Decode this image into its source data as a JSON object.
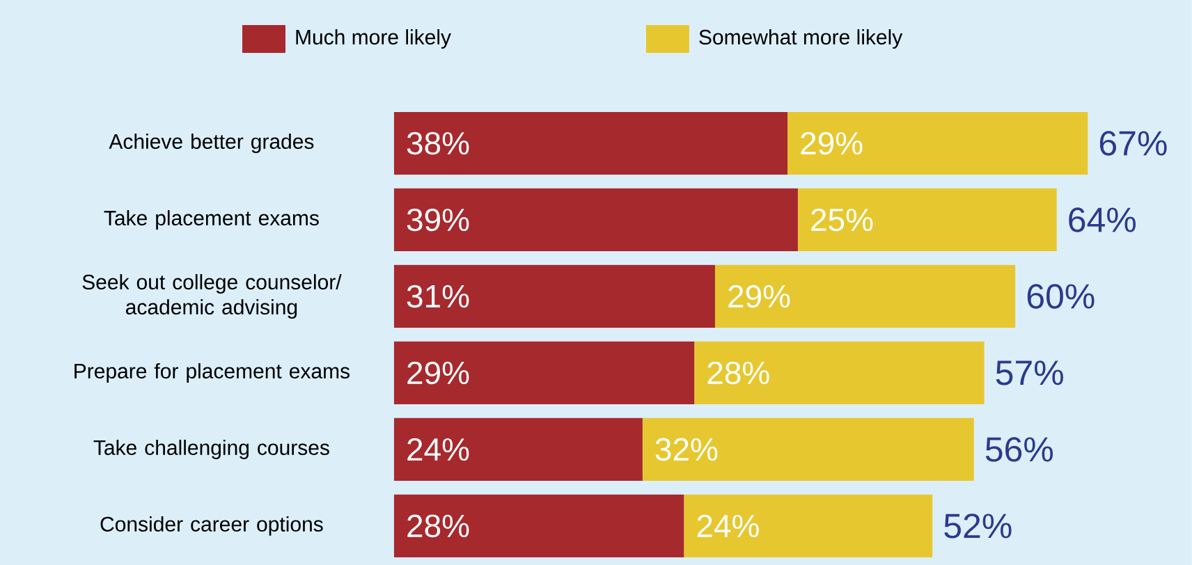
{
  "chart_data": {
    "type": "bar",
    "orientation": "horizontal",
    "stacked": true,
    "legend": "top",
    "categories": [
      "Achieve better grades",
      "Take placement exams",
      "Seek out college counselor/ academic advising",
      "Prepare for placement exams",
      "Take challenging courses",
      "Consider career options"
    ],
    "series": [
      {
        "name": "Much more likely",
        "color": "#a6292e",
        "values": [
          38,
          39,
          31,
          29,
          24,
          28
        ],
        "value_labels": [
          "38%",
          "39%",
          "31%",
          "29%",
          "24%",
          "28%"
        ]
      },
      {
        "name": "Somewhat more likely",
        "color": "#e6c72f",
        "values": [
          29,
          25,
          29,
          28,
          32,
          24
        ],
        "value_labels": [
          "29%",
          "25%",
          "29%",
          "28%",
          "32%",
          "24%"
        ]
      }
    ],
    "totals": [
      "67%",
      "64%",
      "60%",
      "57%",
      "56%",
      "52%"
    ]
  }
}
